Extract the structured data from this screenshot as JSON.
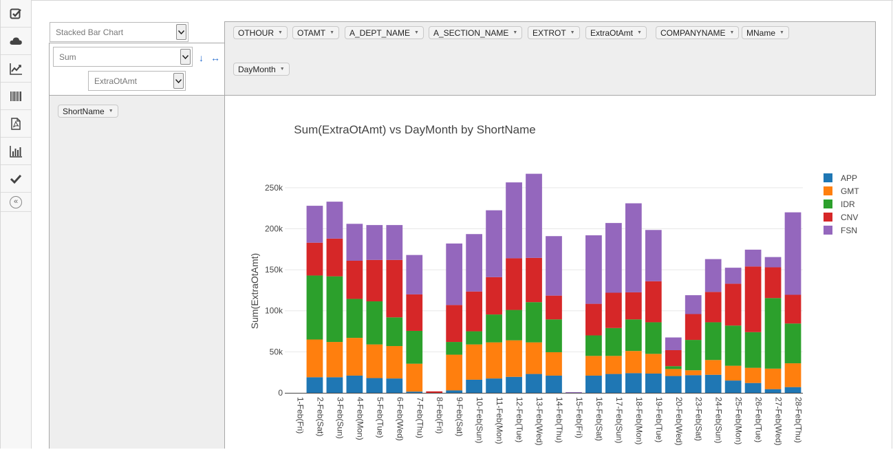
{
  "sidebar": {
    "icons": [
      "checkbox-icon",
      "cloud-icon",
      "line-chart-icon",
      "barcode-icon",
      "pdf-icon",
      "bar-chart-icon",
      "check-icon"
    ]
  },
  "renderer": {
    "selected": "Stacked Bar Chart"
  },
  "aggregator": {
    "selected": "Sum",
    "attribute": "ExtraOtAmt",
    "sort_arrow": "↓",
    "swap_arrow": "↔"
  },
  "unused_fields": [
    "OTHOUR",
    "OTAMT",
    "A_DEPT_NAME",
    "A_SECTION_NAME",
    "EXTROT",
    "ExtraOtAmt",
    "COMPANYNAME",
    "MName"
  ],
  "col_fields": [
    "DayMonth"
  ],
  "row_fields": [
    "ShortName"
  ],
  "colors": {
    "APP": "#1f77b4",
    "GMT": "#ff7f0e",
    "IDR": "#2ca02c",
    "CNV": "#d62728",
    "FSN": "#9467bd"
  },
  "chart_data": {
    "type": "bar",
    "stacked": true,
    "title": "Sum(ExtraOtAmt) vs DayMonth by ShortName",
    "xlabel": "",
    "ylabel": "Sum(ExtraOtAmt)",
    "ylim": [
      0,
      270000
    ],
    "yticks": [
      0,
      50000,
      100000,
      150000,
      200000,
      250000
    ],
    "ytick_labels": [
      "0",
      "50k",
      "100k",
      "150k",
      "200k",
      "250k"
    ],
    "legend_position": "top-right",
    "grid": true,
    "categories": [
      "1-Feb(Fri)",
      "2-Feb(Sat)",
      "3-Feb(Sun)",
      "4-Feb(Mon)",
      "5-Feb(Tue)",
      "6-Feb(Wed)",
      "7-Feb(Thu)",
      "8-Feb(Fri)",
      "9-Feb(Sat)",
      "10-Feb(Sun)",
      "11-Feb(Mon)",
      "12-Feb(Tue)",
      "13-Feb(Wed)",
      "14-Feb(Thu)",
      "15-Feb(Fri)",
      "16-Feb(Sat)",
      "17-Feb(Sun)",
      "18-Feb(Mon)",
      "19-Feb(Tue)",
      "20-Feb(Wed)",
      "23-Feb(Sat)",
      "24-Feb(Sun)",
      "25-Feb(Mon)",
      "26-Feb(Tue)",
      "27-Feb(Wed)",
      "28-Feb(Thu)"
    ],
    "series": [
      {
        "name": "APP",
        "values": [
          0,
          19000,
          19000,
          21000,
          18000,
          17500,
          1500,
          0,
          3000,
          16000,
          17500,
          19500,
          23000,
          21000,
          0,
          21000,
          23000,
          24000,
          23500,
          20500,
          21500,
          22000,
          15000,
          12000,
          4500,
          7000
        ]
      },
      {
        "name": "GMT",
        "values": [
          0,
          46000,
          43000,
          46000,
          41000,
          39500,
          34000,
          0,
          43500,
          43000,
          44000,
          44500,
          38500,
          28500,
          0,
          24000,
          22000,
          27000,
          24000,
          8500,
          6000,
          18000,
          18000,
          18500,
          25000,
          29000
        ]
      },
      {
        "name": "IDR",
        "values": [
          0,
          78000,
          80000,
          47500,
          52500,
          35000,
          40000,
          0,
          15500,
          16000,
          34000,
          37000,
          49000,
          40000,
          0,
          25000,
          34000,
          38500,
          38500,
          3500,
          37000,
          46000,
          49000,
          43500,
          86000,
          48500
        ]
      },
      {
        "name": "CNV",
        "values": [
          0,
          40000,
          46000,
          46500,
          50500,
          70000,
          44500,
          1800,
          45000,
          48500,
          45500,
          63000,
          54000,
          29000,
          0,
          38500,
          43000,
          33000,
          50000,
          19500,
          31500,
          37000,
          51000,
          80000,
          37500,
          35000
        ]
      },
      {
        "name": "FSN",
        "values": [
          0,
          45000,
          45000,
          45000,
          42500,
          42500,
          48000,
          0,
          75000,
          70000,
          81500,
          92500,
          102500,
          72500,
          800,
          83500,
          85000,
          108500,
          62500,
          15500,
          23000,
          40000,
          19500,
          20500,
          12500,
          100500
        ]
      }
    ]
  }
}
